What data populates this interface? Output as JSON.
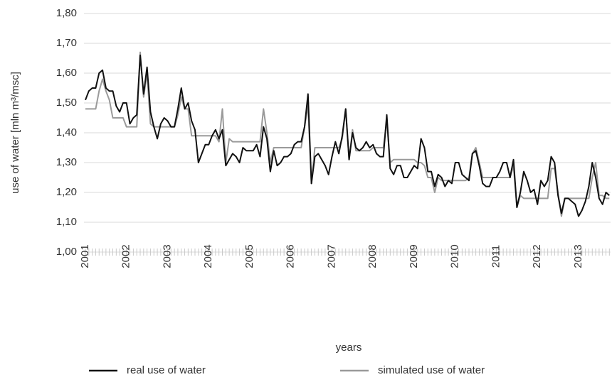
{
  "chart_data": {
    "type": "line",
    "ylabel": "use of water  [mln m³/msc]",
    "xlabel": "years",
    "categories": [
      "2001",
      null,
      null,
      null,
      null,
      null,
      null,
      null,
      null,
      null,
      null,
      null,
      "2002",
      null,
      null,
      null,
      null,
      null,
      null,
      null,
      null,
      null,
      null,
      null,
      "2003",
      null,
      null,
      null,
      null,
      null,
      null,
      null,
      null,
      null,
      null,
      null,
      "2004",
      null,
      null,
      null,
      null,
      null,
      null,
      null,
      null,
      null,
      null,
      null,
      "2005",
      null,
      null,
      null,
      null,
      null,
      null,
      null,
      null,
      null,
      null,
      null,
      "2006",
      null,
      null,
      null,
      null,
      null,
      null,
      null,
      null,
      null,
      null,
      null,
      "2007",
      null,
      null,
      null,
      null,
      null,
      null,
      null,
      null,
      null,
      null,
      null,
      "2008",
      null,
      null,
      null,
      null,
      null,
      null,
      null,
      null,
      null,
      null,
      null,
      "2009",
      null,
      null,
      null,
      null,
      null,
      null,
      null,
      null,
      null,
      null,
      null,
      "2010",
      null,
      null,
      null,
      null,
      null,
      null,
      null,
      null,
      null,
      null,
      null,
      "2011",
      null,
      null,
      null,
      null,
      null,
      null,
      null,
      null,
      null,
      null,
      null,
      "2012",
      null,
      null,
      null,
      null,
      null,
      null,
      null,
      null,
      null,
      null,
      null,
      "2013",
      null,
      null,
      null,
      null,
      null,
      null,
      null,
      null,
      null
    ],
    "series": [
      {
        "name": "real use of water",
        "color": "#111111",
        "values": [
          1.51,
          1.54,
          1.55,
          1.55,
          1.6,
          1.61,
          1.55,
          1.54,
          1.54,
          1.49,
          1.47,
          1.5,
          1.5,
          1.43,
          1.45,
          1.46,
          1.66,
          1.53,
          1.62,
          1.47,
          1.42,
          1.38,
          1.43,
          1.45,
          1.44,
          1.42,
          1.42,
          1.48,
          1.55,
          1.48,
          1.5,
          1.44,
          1.41,
          1.3,
          1.33,
          1.36,
          1.36,
          1.39,
          1.41,
          1.38,
          1.41,
          1.29,
          1.31,
          1.33,
          1.32,
          1.3,
          1.35,
          1.34,
          1.34,
          1.34,
          1.36,
          1.32,
          1.42,
          1.38,
          1.27,
          1.34,
          1.29,
          1.3,
          1.32,
          1.32,
          1.33,
          1.36,
          1.37,
          1.37,
          1.42,
          1.53,
          1.23,
          1.32,
          1.33,
          1.31,
          1.29,
          1.26,
          1.32,
          1.37,
          1.33,
          1.39,
          1.48,
          1.31,
          1.4,
          1.35,
          1.34,
          1.35,
          1.37,
          1.35,
          1.36,
          1.33,
          1.32,
          1.32,
          1.46,
          1.28,
          1.26,
          1.29,
          1.29,
          1.25,
          1.25,
          1.27,
          1.29,
          1.28,
          1.38,
          1.35,
          1.27,
          1.27,
          1.22,
          1.26,
          1.25,
          1.22,
          1.24,
          1.23,
          1.3,
          1.3,
          1.26,
          1.25,
          1.24,
          1.33,
          1.34,
          1.29,
          1.23,
          1.22,
          1.22,
          1.25,
          1.25,
          1.27,
          1.3,
          1.3,
          1.25,
          1.31,
          1.15,
          1.2,
          1.27,
          1.24,
          1.2,
          1.21,
          1.16,
          1.24,
          1.22,
          1.24,
          1.32,
          1.3,
          1.19,
          1.13,
          1.18,
          1.18,
          1.17,
          1.16,
          1.12,
          1.14,
          1.17,
          1.22,
          1.3,
          1.25,
          1.18,
          1.16,
          1.2,
          1.19
        ]
      },
      {
        "name": "simulated use of water",
        "color": "#9a9a9a",
        "values": [
          1.48,
          1.48,
          1.48,
          1.48,
          1.54,
          1.58,
          1.54,
          1.51,
          1.45,
          1.45,
          1.45,
          1.45,
          1.42,
          1.42,
          1.42,
          1.42,
          1.67,
          1.52,
          1.6,
          1.43,
          1.42,
          1.42,
          1.42,
          1.42,
          1.42,
          1.42,
          1.42,
          1.46,
          1.52,
          1.48,
          1.48,
          1.39,
          1.39,
          1.39,
          1.39,
          1.39,
          1.39,
          1.39,
          1.39,
          1.37,
          1.48,
          1.3,
          1.38,
          1.37,
          1.37,
          1.37,
          1.37,
          1.37,
          1.37,
          1.37,
          1.37,
          1.37,
          1.48,
          1.4,
          1.3,
          1.35,
          1.35,
          1.35,
          1.35,
          1.35,
          1.35,
          1.35,
          1.35,
          1.35,
          1.42,
          1.49,
          1.23,
          1.35,
          1.35,
          1.35,
          1.35,
          1.35,
          1.35,
          1.35,
          1.35,
          1.38,
          1.48,
          1.31,
          1.41,
          1.34,
          1.34,
          1.34,
          1.34,
          1.34,
          1.35,
          1.35,
          1.35,
          1.35,
          1.44,
          1.3,
          1.31,
          1.31,
          1.31,
          1.31,
          1.31,
          1.31,
          1.31,
          1.3,
          1.3,
          1.29,
          1.25,
          1.25,
          1.2,
          1.25,
          1.24,
          1.24,
          1.24,
          1.24,
          1.24,
          1.24,
          1.24,
          1.24,
          1.25,
          1.33,
          1.35,
          1.3,
          1.25,
          1.25,
          1.25,
          1.25,
          1.25,
          1.25,
          1.25,
          1.25,
          1.25,
          1.29,
          1.15,
          1.19,
          1.18,
          1.18,
          1.18,
          1.18,
          1.18,
          1.18,
          1.18,
          1.18,
          1.28,
          1.28,
          1.2,
          1.12,
          1.18,
          1.18,
          1.18,
          1.18,
          1.18,
          1.18,
          1.18,
          1.18,
          1.25,
          1.3,
          1.19,
          1.19,
          1.18,
          1.18
        ]
      }
    ],
    "ylim": [
      1.0,
      1.8
    ],
    "yticks": [
      {
        "value": 1.0,
        "label": "1,00"
      },
      {
        "value": 1.1,
        "label": "1,10"
      },
      {
        "value": 1.2,
        "label": "1,20"
      },
      {
        "value": 1.3,
        "label": "1,30"
      },
      {
        "value": 1.4,
        "label": "1,40"
      },
      {
        "value": 1.5,
        "label": "1,50"
      },
      {
        "value": 1.6,
        "label": "1,60"
      },
      {
        "value": 1.7,
        "label": "1,70"
      },
      {
        "value": 1.8,
        "label": "1,80"
      }
    ],
    "grid": true,
    "legend": "bottom"
  }
}
